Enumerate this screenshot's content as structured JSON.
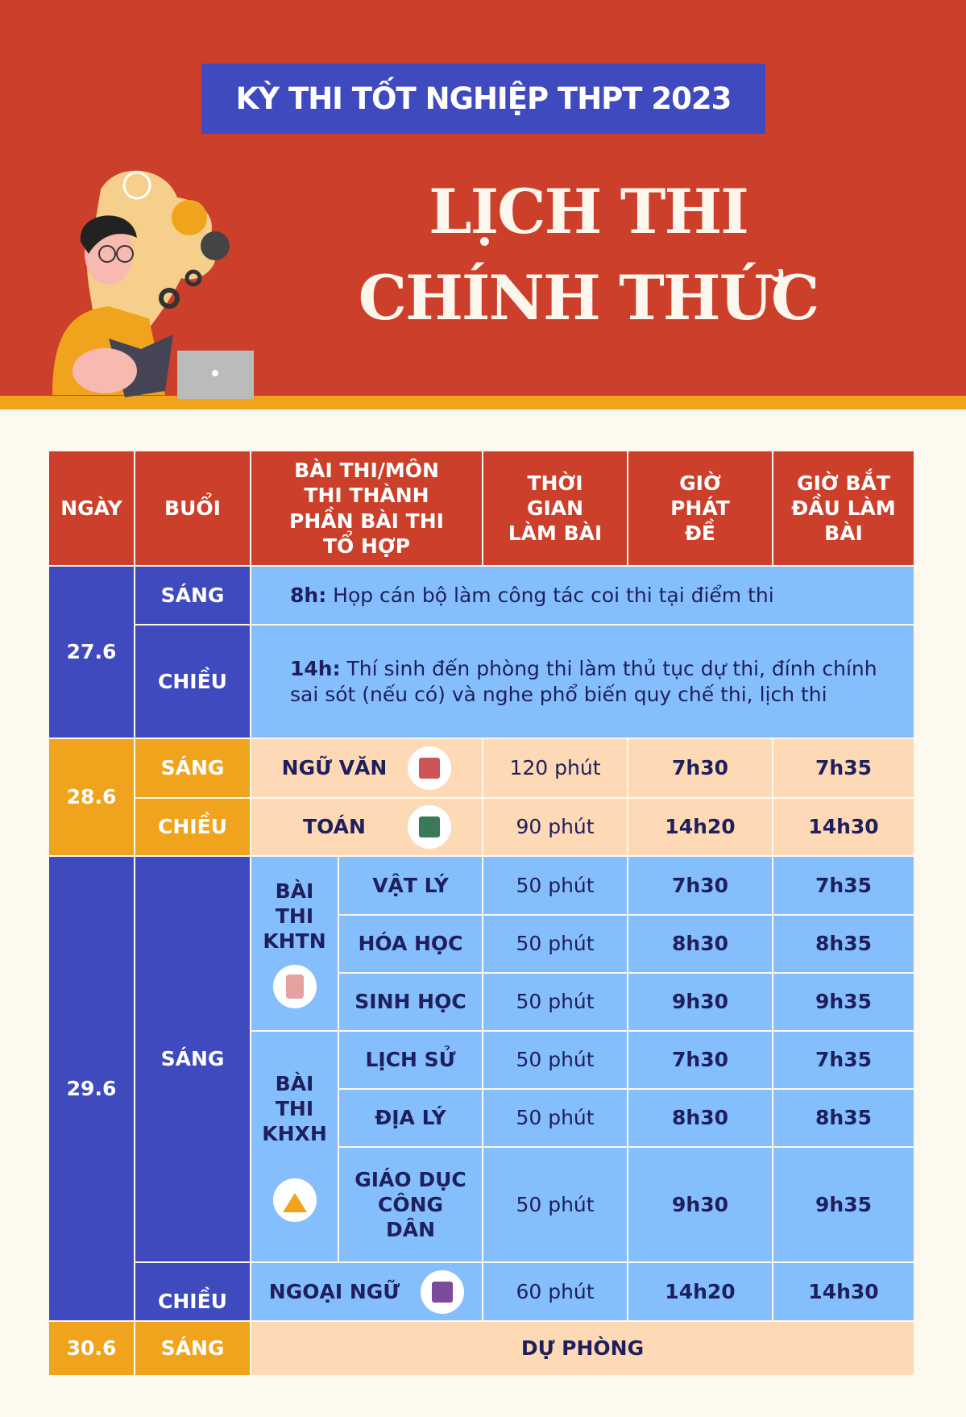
{
  "header": {
    "tag": "KỲ THI TỐT NGHIỆP THPT 2023",
    "title_line1": "LỊCH THI",
    "title_line2": "CHÍNH THỨC"
  },
  "colors": {
    "red": "#cc3f2a",
    "blue": "#3f4abf",
    "light_blue": "#85befd",
    "peach": "#fdd9b5",
    "orange": "#f0a41e",
    "background": "#fef9ee"
  },
  "table": {
    "headers": [
      "NGÀY",
      "BUỔI",
      "BÀI THI/MÔN THI THÀNH PHẦN BÀI THI TỔ HỢP",
      "THỜI GIAN LÀM BÀI",
      "GIỜ PHÁT ĐỀ",
      "GIỜ BẮT ĐẦU LÀM BÀI"
    ],
    "d276": {
      "date": "27.6",
      "am": "SÁNG",
      "am_time": "8h:",
      "am_text": " Họp cán bộ làm công tác coi thi tại điểm thi",
      "pm": "CHIỀU",
      "pm_time": "14h:",
      "pm_text": " Thí sinh đến phòng thi làm thủ tục dự thi, đính chính sai sót (nếu có) và nghe phổ biến quy chế thi, lịch thi"
    },
    "d286": {
      "date": "28.6",
      "rows": [
        {
          "session": "SÁNG",
          "subject": "NGỮ VĂN",
          "icon": "books-icon",
          "duration": "120 phút",
          "release": "7h30",
          "start": "7h35"
        },
        {
          "session": "CHIỀU",
          "subject": "TOÁN",
          "icon": "math-icon",
          "duration": "90 phút",
          "release": "14h20",
          "start": "14h30"
        }
      ]
    },
    "d296": {
      "date": "29.6",
      "am": "SÁNG",
      "pm": "CHIỀU",
      "khtn": "BÀI THI KHTN",
      "khxh": "BÀI THI KHXH",
      "rows": [
        {
          "subject": "VẬT LÝ",
          "duration": "50 phút",
          "release": "7h30",
          "start": "7h35"
        },
        {
          "subject": "HÓA HỌC",
          "duration": "50 phút",
          "release": "8h30",
          "start": "8h35"
        },
        {
          "subject": "SINH HỌC",
          "duration": "50 phút",
          "release": "9h30",
          "start": "9h35"
        },
        {
          "subject": "LỊCH SỬ",
          "duration": "50 phút",
          "release": "7h30",
          "start": "7h35"
        },
        {
          "subject": "ĐỊA LÝ",
          "duration": "50 phút",
          "release": "8h30",
          "start": "8h35"
        },
        {
          "subject": "GIÁO DỤC CÔNG DÂN",
          "duration": "50 phút",
          "release": "9h30",
          "start": "9h35"
        }
      ],
      "foreign": {
        "subject": "NGOẠI NGỮ",
        "duration": "60 phút",
        "release": "14h20",
        "start": "14h30"
      }
    },
    "d306": {
      "date": "30.6",
      "session": "SÁNG",
      "text": "DỰ PHÒNG"
    }
  }
}
